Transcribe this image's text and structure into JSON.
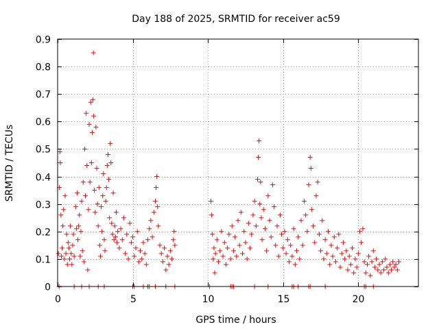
{
  "chart_data": {
    "type": "scatter",
    "title": "Day 188 of 2025, SRMTID for receiver ac59",
    "xlabel": "GPS time / hours",
    "ylabel": "SRMTID / TECUs",
    "xlim": [
      0,
      24
    ],
    "ylim": [
      0,
      0.9
    ],
    "xticks": [
      0,
      5,
      10,
      15,
      20
    ],
    "yticks": [
      0,
      0.1,
      0.2,
      0.3,
      0.4,
      0.5,
      0.6,
      0.7,
      0.8,
      0.9
    ],
    "grid": true,
    "marker": "+",
    "series_color": "#ff0000",
    "series": [
      {
        "name": "SRMTID",
        "points": [
          [
            0.05,
            0.12
          ],
          [
            0.12,
            0.36
          ],
          [
            0.15,
            0.49
          ],
          [
            0.18,
            0.45
          ],
          [
            0.22,
            0.26
          ],
          [
            0.25,
            0.11
          ],
          [
            0.3,
            0.14
          ],
          [
            0.35,
            0.22
          ],
          [
            0.4,
            0.28
          ],
          [
            0.45,
            0.1
          ],
          [
            0.5,
            0.33
          ],
          [
            0.55,
            0.12
          ],
          [
            0.6,
            0.19
          ],
          [
            0.65,
            0.08
          ],
          [
            0.7,
            0.16
          ],
          [
            0.75,
            0.14
          ],
          [
            0.8,
            0.1
          ],
          [
            0.85,
            0.22
          ],
          [
            0.9,
            0.12
          ],
          [
            0.95,
            0.08
          ],
          [
            1.0,
            0.15
          ],
          [
            1.05,
            0.19
          ],
          [
            1.1,
            0.11
          ],
          [
            1.2,
            0.29
          ],
          [
            1.25,
            0.21
          ],
          [
            1.3,
            0.34
          ],
          [
            1.35,
            0.17
          ],
          [
            1.4,
            0.22
          ],
          [
            1.45,
            0.26
          ],
          [
            1.5,
            0.11
          ],
          [
            1.55,
            0.2
          ],
          [
            1.6,
            0.31
          ],
          [
            1.65,
            0.13
          ],
          [
            1.7,
            0.38
          ],
          [
            1.75,
            0.09
          ],
          [
            1.8,
            0.5
          ],
          [
            1.85,
            0.33
          ],
          [
            1.9,
            0.63
          ],
          [
            1.95,
            0.44
          ],
          [
            2.0,
            0.06
          ],
          [
            2.05,
            0.28
          ],
          [
            2.1,
            0.59
          ],
          [
            2.15,
            0.38
          ],
          [
            2.2,
            0.67
          ],
          [
            2.25,
            0.45
          ],
          [
            2.3,
            0.56
          ],
          [
            2.35,
            0.68
          ],
          [
            2.38,
            0.85
          ],
          [
            2.4,
            0.62
          ],
          [
            2.45,
            0.35
          ],
          [
            2.5,
            0.27
          ],
          [
            2.55,
            0.58
          ],
          [
            2.6,
            0.43
          ],
          [
            2.65,
            0.3
          ],
          [
            2.7,
            0.22
          ],
          [
            2.75,
            0.36
          ],
          [
            2.8,
            0.15
          ],
          [
            2.85,
            0.11
          ],
          [
            2.9,
            0.29
          ],
          [
            2.95,
            0.2
          ],
          [
            3.0,
            0.33
          ],
          [
            3.05,
            0.41
          ],
          [
            3.1,
            0.17
          ],
          [
            3.15,
            0.13
          ],
          [
            3.2,
            0.31
          ],
          [
            3.25,
            0.36
          ],
          [
            3.3,
            0.44
          ],
          [
            3.35,
            0.48
          ],
          [
            3.4,
            0.39
          ],
          [
            3.45,
            0.25
          ],
          [
            3.5,
            0.52
          ],
          [
            3.55,
            0.45
          ],
          [
            3.6,
            0.23
          ],
          [
            3.65,
            0.19
          ],
          [
            3.7,
            0.34
          ],
          [
            3.75,
            0.17
          ],
          [
            3.8,
            0.22
          ],
          [
            3.85,
            0.18
          ],
          [
            3.9,
            0.27
          ],
          [
            3.95,
            0.16
          ],
          [
            4.0,
            0.2
          ],
          [
            4.1,
            0.14
          ],
          [
            4.2,
            0.21
          ],
          [
            4.3,
            0.17
          ],
          [
            4.4,
            0.25
          ],
          [
            4.5,
            0.12
          ],
          [
            4.6,
            0.19
          ],
          [
            4.7,
            0.1
          ],
          [
            4.8,
            0.23
          ],
          [
            4.9,
            0.16
          ],
          [
            5.0,
            0.18
          ],
          [
            5.1,
            0.11
          ],
          [
            5.2,
            0.14
          ],
          [
            5.3,
            0.2
          ],
          [
            5.4,
            0.09
          ],
          [
            5.5,
            0.13
          ],
          [
            5.6,
            0.1
          ],
          [
            5.7,
            0.16
          ],
          [
            5.8,
            0.12
          ],
          [
            5.9,
            0.08
          ],
          [
            6.0,
            0.17
          ],
          [
            6.1,
            0.21
          ],
          [
            6.2,
            0.24
          ],
          [
            6.3,
            0.18
          ],
          [
            6.4,
            0.27
          ],
          [
            6.5,
            0.31
          ],
          [
            6.55,
            0.36
          ],
          [
            6.6,
            0.4
          ],
          [
            6.65,
            0.29
          ],
          [
            6.7,
            0.22
          ],
          [
            6.8,
            0.15
          ],
          [
            6.9,
            0.12
          ],
          [
            7.0,
            0.09
          ],
          [
            7.1,
            0.14
          ],
          [
            7.2,
            0.06
          ],
          [
            7.3,
            0.11
          ],
          [
            7.4,
            0.08
          ],
          [
            7.5,
            0.13
          ],
          [
            7.6,
            0.1
          ],
          [
            7.7,
            0.17
          ],
          [
            7.75,
            0.2
          ],
          [
            7.8,
            0.15
          ],
          [
            10.2,
            0.31
          ],
          [
            10.25,
            0.26
          ],
          [
            10.3,
            0.19
          ],
          [
            10.35,
            0.1
          ],
          [
            10.4,
            0.14
          ],
          [
            10.45,
            0.05
          ],
          [
            10.5,
            0.12
          ],
          [
            10.6,
            0.17
          ],
          [
            10.7,
            0.09
          ],
          [
            10.8,
            0.13
          ],
          [
            10.9,
            0.2
          ],
          [
            11.0,
            0.11
          ],
          [
            11.1,
            0.16
          ],
          [
            11.2,
            0.08
          ],
          [
            11.3,
            0.14
          ],
          [
            11.4,
            0.19
          ],
          [
            11.5,
            0.1
          ],
          [
            11.6,
            0.22
          ],
          [
            11.7,
            0.13
          ],
          [
            11.8,
            0.18
          ],
          [
            11.9,
            0.11
          ],
          [
            12.0,
            0.24
          ],
          [
            12.1,
            0.15
          ],
          [
            12.2,
            0.27
          ],
          [
            12.3,
            0.12
          ],
          [
            12.4,
            0.2
          ],
          [
            12.5,
            0.16
          ],
          [
            12.6,
            0.1
          ],
          [
            12.7,
            0.23
          ],
          [
            12.8,
            0.14
          ],
          [
            12.9,
            0.19
          ],
          [
            13.0,
            0.26
          ],
          [
            13.1,
            0.31
          ],
          [
            13.2,
            0.22
          ],
          [
            13.3,
            0.39
          ],
          [
            13.35,
            0.47
          ],
          [
            13.4,
            0.53
          ],
          [
            13.45,
            0.3
          ],
          [
            13.5,
            0.38
          ],
          [
            13.55,
            0.25
          ],
          [
            13.6,
            0.17
          ],
          [
            13.7,
            0.28
          ],
          [
            13.8,
            0.21
          ],
          [
            13.9,
            0.13
          ],
          [
            14.0,
            0.33
          ],
          [
            14.1,
            0.24
          ],
          [
            14.2,
            0.18
          ],
          [
            14.3,
            0.37
          ],
          [
            14.4,
            0.29
          ],
          [
            14.5,
            0.15
          ],
          [
            14.6,
            0.22
          ],
          [
            14.7,
            0.11
          ],
          [
            14.8,
            0.26
          ],
          [
            14.9,
            0.19
          ],
          [
            15.0,
            0.14
          ],
          [
            15.1,
            0.2
          ],
          [
            15.2,
            0.12
          ],
          [
            15.3,
            0.17
          ],
          [
            15.4,
            0.09
          ],
          [
            15.5,
            0.15
          ],
          [
            15.6,
            0.11
          ],
          [
            15.7,
            0.21
          ],
          [
            15.8,
            0.08
          ],
          [
            15.9,
            0.13
          ],
          [
            16.0,
            0.18
          ],
          [
            16.1,
            0.1
          ],
          [
            16.2,
            0.24
          ],
          [
            16.3,
            0.15
          ],
          [
            16.4,
            0.31
          ],
          [
            16.5,
            0.26
          ],
          [
            16.6,
            0.2
          ],
          [
            16.7,
            0.37
          ],
          [
            16.8,
            0.47
          ],
          [
            16.85,
            0.43
          ],
          [
            16.9,
            0.28
          ],
          [
            17.0,
            0.22
          ],
          [
            17.1,
            0.16
          ],
          [
            17.2,
            0.33
          ],
          [
            17.3,
            0.38
          ],
          [
            17.4,
            0.19
          ],
          [
            17.5,
            0.13
          ],
          [
            17.6,
            0.24
          ],
          [
            17.7,
            0.1
          ],
          [
            17.8,
            0.17
          ],
          [
            17.9,
            0.12
          ],
          [
            18.0,
            0.2
          ],
          [
            18.1,
            0.08
          ],
          [
            18.2,
            0.15
          ],
          [
            18.3,
            0.11
          ],
          [
            18.4,
            0.18
          ],
          [
            18.5,
            0.09
          ],
          [
            18.6,
            0.14
          ],
          [
            18.7,
            0.19
          ],
          [
            18.8,
            0.07
          ],
          [
            18.9,
            0.12
          ],
          [
            19.0,
            0.16
          ],
          [
            19.1,
            0.1
          ],
          [
            19.2,
            0.13
          ],
          [
            19.3,
            0.06
          ],
          [
            19.4,
            0.11
          ],
          [
            19.5,
            0.08
          ],
          [
            19.6,
            0.14
          ],
          [
            19.7,
            0.05
          ],
          [
            19.8,
            0.1
          ],
          [
            19.9,
            0.07
          ],
          [
            20.0,
            0.12
          ],
          [
            20.1,
            0.2
          ],
          [
            20.2,
            0.16
          ],
          [
            20.3,
            0.21
          ],
          [
            20.4,
            0.09
          ],
          [
            20.5,
            0.05
          ],
          [
            20.6,
            0.08
          ],
          [
            20.7,
            0.11
          ],
          [
            20.8,
            0.04
          ],
          [
            20.9,
            0.09
          ],
          [
            21.0,
            0.13
          ],
          [
            21.1,
            0.07
          ],
          [
            21.2,
            0.1
          ],
          [
            21.3,
            0.06
          ],
          [
            21.4,
            0.08
          ],
          [
            21.5,
            0.05
          ],
          [
            21.6,
            0.09
          ],
          [
            21.7,
            0.06
          ],
          [
            21.8,
            0.1
          ],
          [
            21.9,
            0.07
          ],
          [
            22.0,
            0.05
          ],
          [
            22.1,
            0.08
          ],
          [
            22.2,
            0.06
          ],
          [
            22.3,
            0.09
          ],
          [
            22.4,
            0.07
          ],
          [
            22.5,
            0.08
          ],
          [
            22.6,
            0.06
          ],
          [
            22.7,
            0.09
          ]
        ],
        "baseline_points": [
          [
            0.1,
            0
          ],
          [
            1.1,
            0
          ],
          [
            1.6,
            0
          ],
          [
            2.1,
            0
          ],
          [
            2.7,
            0
          ],
          [
            3.1,
            0
          ],
          [
            5.0,
            0
          ],
          [
            5.1,
            0
          ],
          [
            5.7,
            0
          ],
          [
            6.0,
            0
          ],
          [
            6.1,
            0
          ],
          [
            6.5,
            0
          ],
          [
            7.2,
            0
          ],
          [
            7.8,
            0
          ],
          [
            10.1,
            0
          ],
          [
            11.5,
            0
          ],
          [
            11.6,
            0
          ],
          [
            11.7,
            0
          ],
          [
            13.1,
            0
          ],
          [
            14.0,
            0
          ],
          [
            15.6,
            0
          ],
          [
            15.7,
            0
          ],
          [
            16.0,
            0
          ],
          [
            16.7,
            0
          ],
          [
            16.8,
            0
          ],
          [
            17.8,
            0
          ],
          [
            20.4,
            0
          ],
          [
            20.5,
            0
          ],
          [
            21.0,
            0
          ]
        ]
      }
    ]
  }
}
